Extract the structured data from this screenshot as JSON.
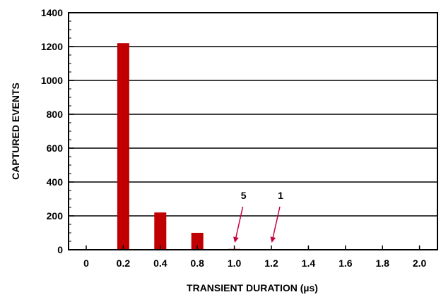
{
  "chart_data": {
    "type": "bar",
    "xlabel": "TRANSIENT DURATION (µs)",
    "ylabel": "CAPTURED EVENTS",
    "ylim": [
      0,
      1400
    ],
    "yticks": [
      "0",
      "200",
      "400",
      "600",
      "800",
      "1000",
      "1200",
      "1400"
    ],
    "categories": [
      "0",
      "0.2",
      "0.4",
      "0.8",
      "1.0",
      "1.2",
      "1.4",
      "1.6",
      "1.8",
      "2.0"
    ],
    "values": [
      0,
      1220,
      220,
      100,
      5,
      1,
      0,
      0,
      0,
      0
    ],
    "bar_color": "#c00000",
    "grid": "horizontal",
    "annotations": [
      {
        "text": "5",
        "category": "1.0",
        "color": "#c8003c"
      },
      {
        "text": "1",
        "category": "1.2",
        "color": "#c8003c"
      }
    ]
  }
}
